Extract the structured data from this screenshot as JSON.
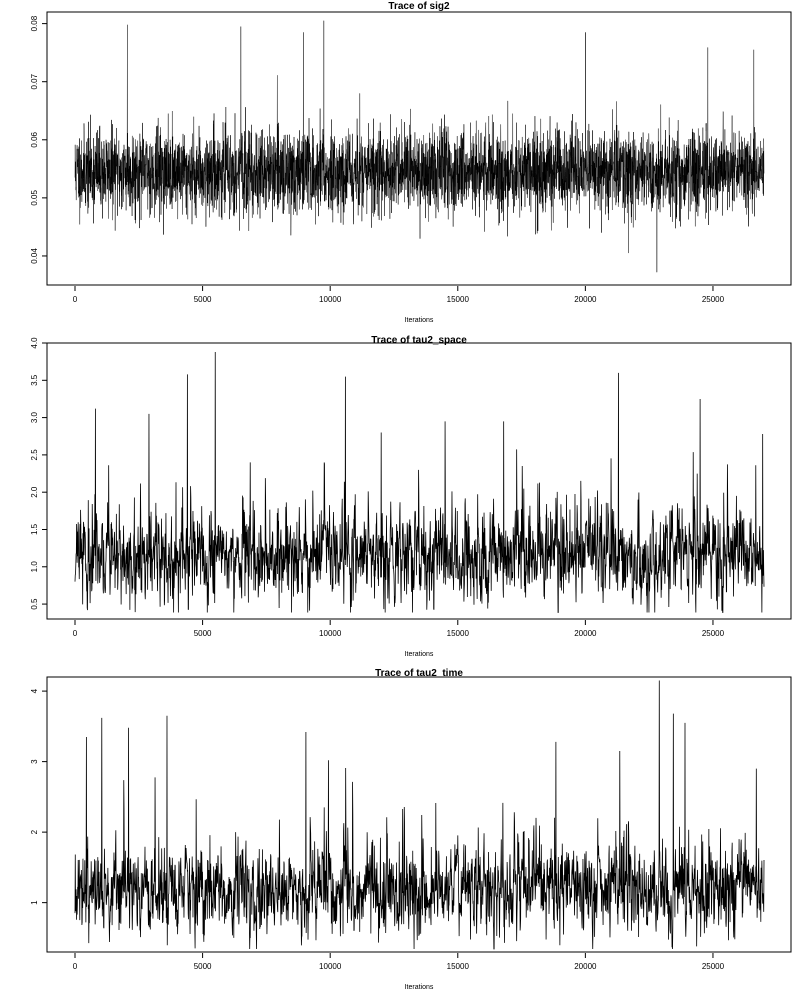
{
  "chart_data": [
    {
      "type": "line",
      "title": "Trace of sig2",
      "xlabel": "Iterations",
      "ylabel": "",
      "n_iterations": 27000,
      "xlim": [
        0,
        27000
      ],
      "ylim": [
        0.035,
        0.082
      ],
      "x_ticks": [
        0,
        5000,
        10000,
        15000,
        20000,
        25000
      ],
      "y_ticks": [
        0.04,
        0.05,
        0.06,
        0.07,
        0.08
      ],
      "trace_summary": {
        "center": 0.0545,
        "typical_low": 0.0465,
        "typical_high": 0.0625,
        "min": 0.0372,
        "max": 0.0805
      },
      "peaks": [
        {
          "x": 2050,
          "y": 0.0798
        },
        {
          "x": 6500,
          "y": 0.0795
        },
        {
          "x": 8950,
          "y": 0.0785
        },
        {
          "x": 9750,
          "y": 0.0805
        },
        {
          "x": 20000,
          "y": 0.0785
        },
        {
          "x": 24800,
          "y": 0.0759
        },
        {
          "x": 26600,
          "y": 0.0755
        },
        {
          "x": 22800,
          "y": 0.0372
        },
        {
          "x": 21700,
          "y": 0.0405
        }
      ],
      "grid": false,
      "color": "#000000"
    },
    {
      "type": "line",
      "title": "Trace of tau2_space",
      "xlabel": "Iterations",
      "ylabel": "",
      "n_iterations": 27000,
      "xlim": [
        0,
        27000
      ],
      "ylim": [
        0.3,
        4.0
      ],
      "x_ticks": [
        0,
        5000,
        10000,
        15000,
        20000,
        25000
      ],
      "y_ticks": [
        0.5,
        1.0,
        1.5,
        2.0,
        2.5,
        3.0,
        3.5,
        4.0
      ],
      "trace_summary": {
        "center": 1.1,
        "typical_low": 0.6,
        "typical_high": 1.8,
        "min": 0.35,
        "max": 3.88
      },
      "peaks": [
        {
          "x": 5500,
          "y": 3.88
        },
        {
          "x": 4400,
          "y": 3.58
        },
        {
          "x": 10600,
          "y": 3.55
        },
        {
          "x": 21300,
          "y": 3.6
        },
        {
          "x": 24500,
          "y": 3.25
        },
        {
          "x": 800,
          "y": 3.12
        },
        {
          "x": 2900,
          "y": 3.05
        },
        {
          "x": 14500,
          "y": 2.95
        },
        {
          "x": 16800,
          "y": 2.95
        },
        {
          "x": 26950,
          "y": 2.78
        },
        {
          "x": 12000,
          "y": 2.8
        }
      ],
      "grid": false,
      "color": "#000000"
    },
    {
      "type": "line",
      "title": "Trace of tau2_time",
      "xlabel": "Iterations",
      "ylabel": "",
      "n_iterations": 27000,
      "xlim": [
        0,
        27000
      ],
      "ylim": [
        0.3,
        4.2
      ],
      "x_ticks": [
        0,
        5000,
        10000,
        15000,
        20000,
        25000
      ],
      "y_ticks": [
        1,
        2,
        3,
        4
      ],
      "trace_summary": {
        "center": 1.15,
        "typical_low": 0.7,
        "typical_high": 1.9,
        "min": 0.3,
        "max": 4.15
      },
      "peaks": [
        {
          "x": 22900,
          "y": 4.15
        },
        {
          "x": 23450,
          "y": 3.68
        },
        {
          "x": 3600,
          "y": 3.65
        },
        {
          "x": 1050,
          "y": 3.62
        },
        {
          "x": 23900,
          "y": 3.55
        },
        {
          "x": 2100,
          "y": 3.48
        },
        {
          "x": 9050,
          "y": 3.42
        },
        {
          "x": 450,
          "y": 3.35
        },
        {
          "x": 18850,
          "y": 3.28
        },
        {
          "x": 21350,
          "y": 3.15
        },
        {
          "x": 26700,
          "y": 2.9
        }
      ],
      "grid": false,
      "color": "#000000"
    }
  ]
}
